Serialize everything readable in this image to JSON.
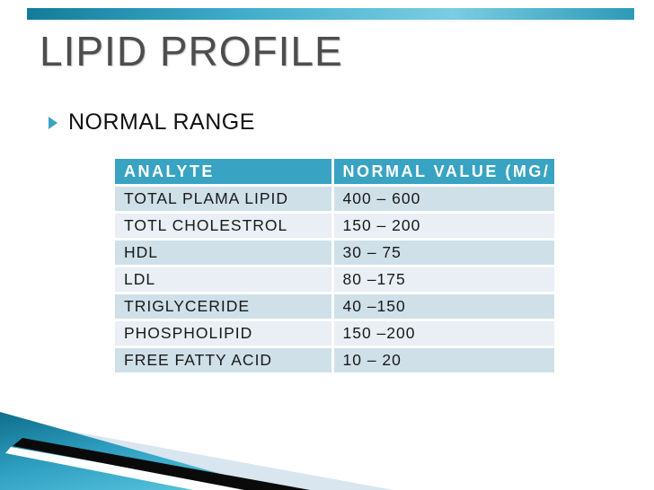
{
  "slide": {
    "title": "LIPID PROFILE",
    "bullet": {
      "label": "NORMAL RANGE"
    },
    "table": {
      "headers": [
        "ANALYTE",
        "NORMAL VALUE (MG/"
      ],
      "rows": [
        {
          "analyte": "TOTAL PLAMA LIPID",
          "value": "400 – 600"
        },
        {
          "analyte": "TOTL CHOLESTROL",
          "value": "150 – 200"
        },
        {
          "analyte": "HDL",
          "value": "30 – 75"
        },
        {
          "analyte": "LDL",
          "value": "80 –175"
        },
        {
          "analyte": "TRIGLYCERIDE",
          "value": "40 –150"
        },
        {
          "analyte": "PHOSPHOLIPID",
          "value": "150 –200"
        },
        {
          "analyte": "FREE FATTY ACID",
          "value": "10 – 20"
        }
      ]
    },
    "colors": {
      "accent_teal": "#38a3c2",
      "top_bar_gradient_ends": "#137c9b",
      "top_bar_gradient_mid": "#7bcde2",
      "row_band_dark": "#cfe0e9",
      "row_band_light": "#e9eff4",
      "header_text": "#ffffff",
      "title_gray": "#4d4d4d",
      "body_text": "#191919",
      "bullet_triangle": "#3da3c3",
      "swoosh_teal_dark": "#0f6e8c",
      "swoosh_teal_light": "#57c3de",
      "swoosh_black": "#0a0a0a",
      "swoosh_pale_blue": "#d9e6ef"
    }
  }
}
